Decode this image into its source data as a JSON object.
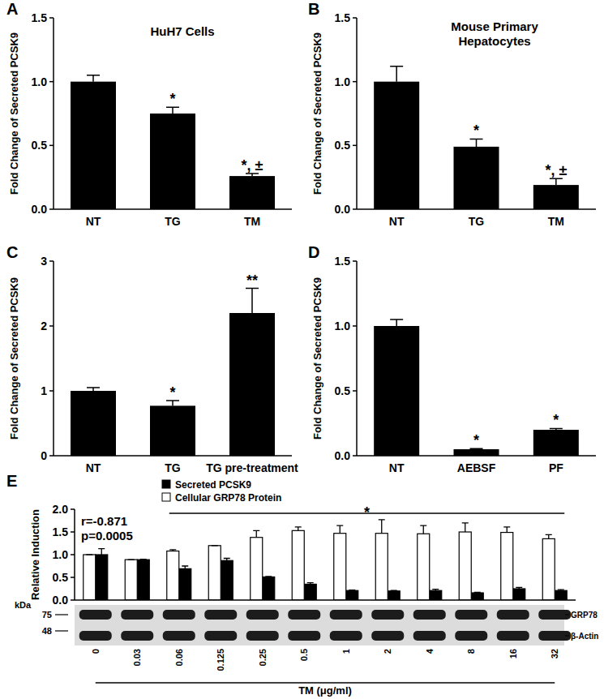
{
  "chart_data": [
    {
      "type": "bar",
      "panel": "A",
      "title": [
        "HuH7 Cells"
      ],
      "y_label": "Fold Change of Secreted PCSK9",
      "categories": [
        "NT",
        "TG",
        "TM"
      ],
      "values": [
        1.0,
        0.75,
        0.26
      ],
      "errors": [
        0.05,
        0.05,
        0.02
      ],
      "color": "#000000",
      "ylim": [
        0,
        1.5
      ],
      "yticks": [
        {
          "value": 0,
          "label": "0.0"
        },
        {
          "value": 0.5,
          "label": "0.5"
        },
        {
          "value": 1,
          "label": "1.0"
        },
        {
          "value": 1.5,
          "label": "1.5"
        }
      ],
      "annotations": [
        {
          "text": "*",
          "x": "TG"
        },
        {
          "text": "*, ±",
          "x": "TM"
        }
      ]
    },
    {
      "type": "bar",
      "panel": "B",
      "title": [
        "Mouse Primary",
        "Hepatocytes"
      ],
      "y_label": "Fold Change of Secreted PCSK9",
      "categories": [
        "NT",
        "TG",
        "TM"
      ],
      "values": [
        1.0,
        0.49,
        0.19
      ],
      "errors": [
        0.12,
        0.06,
        0.05
      ],
      "color": "#000000",
      "ylim": [
        0,
        1.5
      ],
      "yticks": [
        {
          "value": 0,
          "label": "0.0"
        },
        {
          "value": 0.5,
          "label": "0.5"
        },
        {
          "value": 1,
          "label": "1.0"
        },
        {
          "value": 1.5,
          "label": "1.5"
        }
      ],
      "annotations": [
        {
          "text": "*",
          "x": "TG"
        },
        {
          "text": "*, ±",
          "x": "TM"
        }
      ]
    },
    {
      "type": "bar",
      "panel": "C",
      "y_label": "Fold Change of Secreted PCSK9",
      "categories": [
        "NT",
        "TG",
        "TG pre-treatment"
      ],
      "values": [
        1.0,
        0.77,
        2.2
      ],
      "errors": [
        0.05,
        0.08,
        0.38
      ],
      "color": "#000000",
      "ylim": [
        0,
        3
      ],
      "yticks": [
        0,
        1,
        2,
        3
      ],
      "annotations": [
        {
          "text": "*",
          "x": "TG"
        },
        {
          "text": "**",
          "x": "TG pre-treatment"
        }
      ]
    },
    {
      "type": "bar",
      "panel": "D",
      "y_label": "Fold Change of Secreted PCSK9",
      "categories": [
        "NT",
        "AEBSF",
        "PF"
      ],
      "values": [
        1.0,
        0.05,
        0.2
      ],
      "errors": [
        0.05,
        0.005,
        0.01
      ],
      "color": "#000000",
      "ylim": [
        0,
        1.5
      ],
      "yticks": [
        {
          "value": 0,
          "label": "0.0"
        },
        {
          "value": 0.5,
          "label": "0.5"
        },
        {
          "value": 1,
          "label": "1.0"
        },
        {
          "value": 1.5,
          "label": "1.5"
        }
      ],
      "annotations": [
        {
          "text": "*",
          "x": "AEBSF"
        },
        {
          "text": "*",
          "x": "PF"
        }
      ]
    },
    {
      "type": "bar",
      "panel": "E",
      "y_label": "Relative Induction",
      "x_label": "TM (μg/ml)",
      "categories": [
        "0",
        "0.03",
        "0.06",
        "0.125",
        "0.25",
        "0.5",
        "1",
        "2",
        "4",
        "8",
        "16",
        "32"
      ],
      "series": [
        {
          "name": "Secreted PCSK9",
          "color": "#000000",
          "values": [
            1.0,
            0.89,
            0.69,
            0.87,
            0.51,
            0.35,
            0.21,
            0.2,
            0.21,
            0.16,
            0.25,
            0.21
          ],
          "errors": [
            0.13,
            0.01,
            0.06,
            0.05,
            0.01,
            0.03,
            0.01,
            0.01,
            0.03,
            0.01,
            0.03,
            0.02
          ]
        },
        {
          "name": "Cellular GRP78 Protein",
          "color": "#ffffff",
          "values": [
            1.0,
            0.89,
            1.08,
            1.2,
            1.38,
            1.53,
            1.47,
            1.47,
            1.46,
            1.5,
            1.49,
            1.35
          ],
          "errors": [
            0.0,
            0.0,
            0.03,
            0.0,
            0.15,
            0.08,
            0.17,
            0.3,
            0.18,
            0.2,
            0.12,
            0.09
          ]
        }
      ],
      "legend": "upper left",
      "ylim": [
        0,
        2
      ],
      "yticks": [
        {
          "value": 0,
          "label": "0.0"
        },
        {
          "value": 0.5,
          "label": "0.5"
        },
        {
          "value": 1,
          "label": "1.0"
        },
        {
          "value": 1.5,
          "label": "1.5"
        },
        {
          "value": 2,
          "label": "2.0"
        }
      ],
      "annotations": [
        {
          "text": "r=-0.871"
        },
        {
          "text": "p=0.0005"
        },
        {
          "text": "*",
          "x_from": "0.06",
          "x_to": "32"
        }
      ],
      "blot": {
        "unit": "kDa",
        "markers": [
          75,
          48
        ],
        "bands": [
          "GRP78",
          "β-Actin"
        ]
      }
    }
  ]
}
